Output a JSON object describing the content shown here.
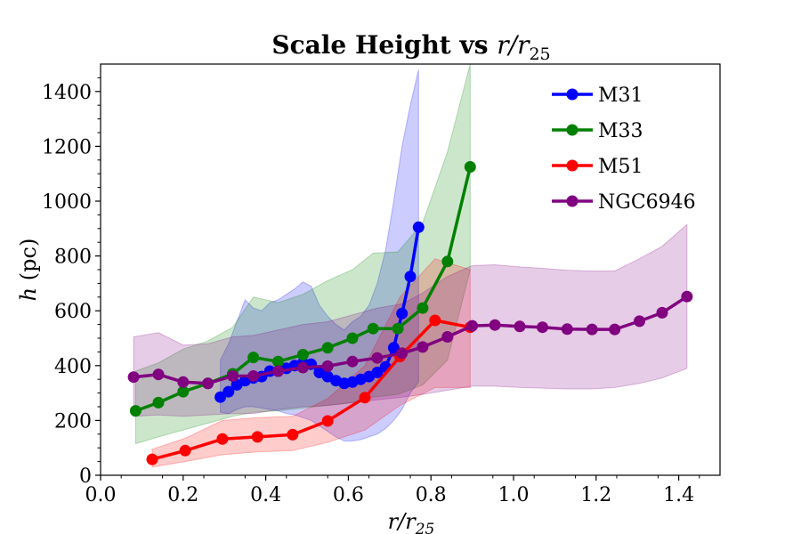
{
  "chart_data": {
    "type": "line",
    "title": "Scale Height vs r/r25",
    "title_main": "Scale Height vs ",
    "title_var": "r/r",
    "title_sub": "25",
    "xlabel_var": "r/r",
    "xlabel_sub": "25",
    "ylabel_var": "h",
    "ylabel_unit": " (pc)",
    "xlim": [
      0.0,
      1.5
    ],
    "ylim": [
      0,
      1500
    ],
    "xticks": [
      0.0,
      0.2,
      0.4,
      0.6,
      0.8,
      1.0,
      1.2,
      1.4
    ],
    "xtick_labels": [
      "0.0",
      "0.2",
      "0.4",
      "0.6",
      "0.8",
      "1.0",
      "1.2",
      "1.4"
    ],
    "yticks": [
      0,
      200,
      400,
      600,
      800,
      1000,
      1200,
      1400
    ],
    "ytick_labels": [
      "0",
      "200",
      "400",
      "600",
      "800",
      "1000",
      "1200",
      "1400"
    ],
    "grid": false,
    "legend_position": "top-right",
    "series": [
      {
        "name": "M31",
        "color": "#0000ff",
        "x": [
          0.29,
          0.31,
          0.33,
          0.35,
          0.37,
          0.39,
          0.41,
          0.43,
          0.45,
          0.47,
          0.49,
          0.51,
          0.53,
          0.55,
          0.57,
          0.59,
          0.61,
          0.63,
          0.65,
          0.67,
          0.69,
          0.71,
          0.73,
          0.75,
          0.77
        ],
        "y": [
          285,
          305,
          330,
          345,
          355,
          360,
          380,
          380,
          390,
          400,
          410,
          405,
          375,
          360,
          345,
          335,
          340,
          350,
          360,
          375,
          395,
          465,
          590,
          725,
          905
        ],
        "band_low": [
          230,
          225,
          240,
          250,
          250,
          245,
          240,
          235,
          225,
          220,
          210,
          200,
          180,
          160,
          140,
          125,
          125,
          130,
          140,
          150,
          170,
          200,
          240,
          300,
          340
        ],
        "band_high": [
          420,
          480,
          560,
          640,
          610,
          600,
          630,
          640,
          660,
          680,
          705,
          690,
          620,
          580,
          550,
          530,
          560,
          580,
          620,
          700,
          820,
          1000,
          1200,
          1350,
          1480
        ]
      },
      {
        "name": "M33",
        "color": "#008000",
        "x": [
          0.085,
          0.14,
          0.2,
          0.26,
          0.32,
          0.37,
          0.43,
          0.49,
          0.55,
          0.61,
          0.66,
          0.72,
          0.78,
          0.84,
          0.895
        ],
        "y": [
          235,
          265,
          305,
          335,
          370,
          430,
          415,
          440,
          465,
          500,
          535,
          535,
          610,
          780,
          1125
        ],
        "band_low": [
          115,
          140,
          165,
          190,
          215,
          230,
          235,
          245,
          255,
          265,
          285,
          295,
          330,
          420,
          750
        ],
        "band_high": [
          380,
          410,
          460,
          490,
          540,
          650,
          630,
          660,
          710,
          750,
          810,
          815,
          920,
          1180,
          1500
        ]
      },
      {
        "name": "M51",
        "color": "#ff0000",
        "x": [
          0.125,
          0.205,
          0.295,
          0.38,
          0.465,
          0.55,
          0.64,
          0.725,
          0.81,
          0.895
        ],
        "y": [
          58,
          90,
          132,
          140,
          148,
          198,
          283,
          433,
          565,
          540
        ],
        "band_low": [
          30,
          50,
          75,
          85,
          90,
          120,
          165,
          255,
          320,
          320
        ],
        "band_high": [
          95,
          135,
          200,
          210,
          215,
          280,
          400,
          650,
          790,
          750
        ]
      },
      {
        "name": "NGC6946",
        "color": "#800080",
        "x": [
          0.08,
          0.14,
          0.2,
          0.26,
          0.32,
          0.37,
          0.43,
          0.49,
          0.55,
          0.61,
          0.67,
          0.73,
          0.78,
          0.84,
          0.9,
          0.955,
          1.015,
          1.07,
          1.13,
          1.19,
          1.245,
          1.305,
          1.36,
          1.42
        ],
        "y": [
          358,
          368,
          340,
          335,
          362,
          362,
          380,
          393,
          398,
          415,
          428,
          445,
          468,
          505,
          545,
          548,
          543,
          540,
          533,
          532,
          532,
          562,
          593,
          652
        ],
        "band_low": [
          215,
          220,
          215,
          220,
          225,
          225,
          240,
          250,
          255,
          265,
          275,
          285,
          295,
          310,
          325,
          325,
          320,
          318,
          315,
          315,
          320,
          335,
          355,
          390
        ],
        "band_high": [
          505,
          520,
          475,
          480,
          505,
          510,
          530,
          550,
          560,
          585,
          610,
          625,
          665,
          725,
          765,
          768,
          760,
          755,
          748,
          745,
          745,
          790,
          835,
          915
        ]
      }
    ]
  }
}
